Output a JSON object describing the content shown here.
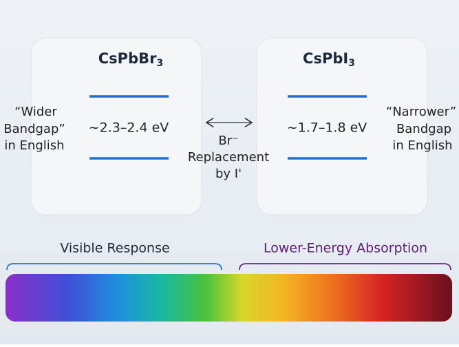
{
  "left_card": {
    "formula": {
      "base": "CsPbBr",
      "sub": "3"
    },
    "energy": "~2.3–2.4 eV"
  },
  "right_card": {
    "formula": {
      "base": "CsPbI",
      "sub": "3"
    },
    "energy": "~1.7–1.8 eV"
  },
  "left_note": [
    "“Wider",
    "Bandgap”",
    "in English"
  ],
  "right_note": [
    "“Narrower”",
    "Bandgap",
    "in English"
  ],
  "middle_note": [
    "Br⁻",
    "Replacement",
    "by I'"
  ],
  "spectrum": {
    "left_label": "Visible Response",
    "right_label": "Lower-Energy Absorption"
  }
}
